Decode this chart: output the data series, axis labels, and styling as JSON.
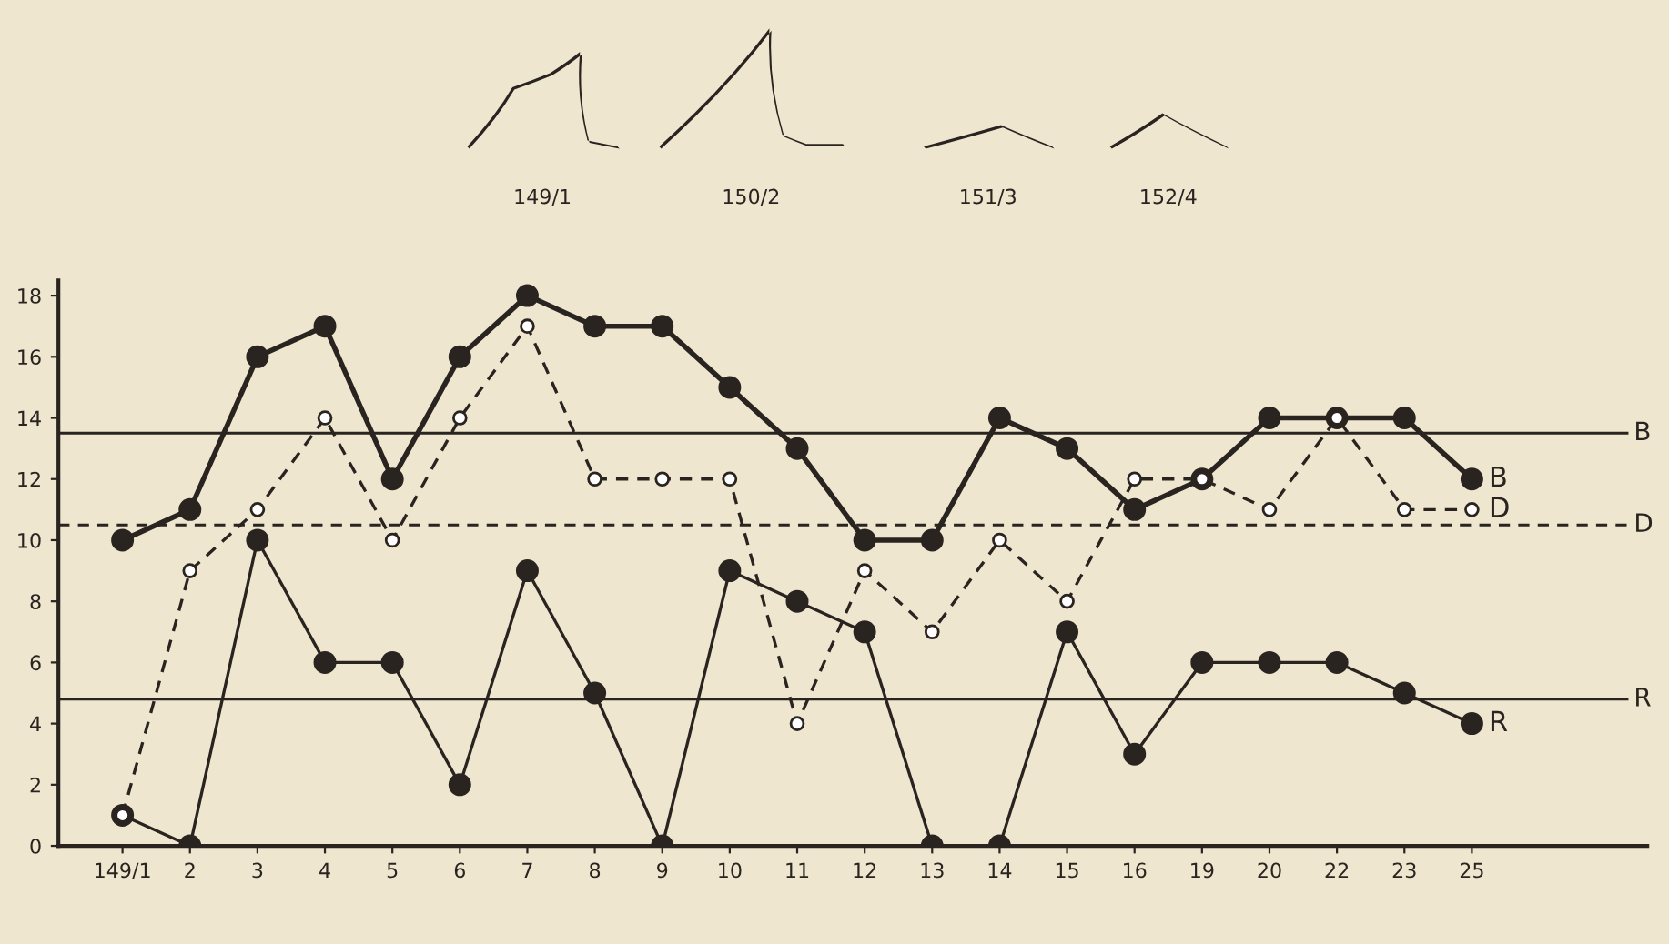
{
  "chart_data": {
    "type": "line",
    "categories": [
      "149/1",
      "2",
      "3",
      "4",
      "5",
      "6",
      "7",
      "8",
      "9",
      "10",
      "11",
      "12",
      "13",
      "14",
      "15",
      "16",
      "19",
      "20",
      "22",
      "23",
      "25"
    ],
    "series": [
      {
        "name": "B",
        "color": "#2a2420",
        "line_style": "solid",
        "values": [
          10,
          11,
          16,
          17,
          12,
          16,
          18,
          17,
          17,
          15,
          13,
          10,
          10,
          14,
          13,
          11,
          12,
          14,
          14,
          14,
          12
        ]
      },
      {
        "name": "D",
        "color": "#2a2420",
        "line_style": "dashed",
        "values": [
          1,
          9,
          11,
          14,
          10,
          14,
          17,
          12,
          12,
          12,
          4,
          9,
          7,
          10,
          8,
          12,
          12,
          11,
          14,
          11,
          11
        ]
      },
      {
        "name": "R",
        "color": "#2a2420",
        "line_style": "solid",
        "values": [
          1,
          0,
          10,
          6,
          6,
          2,
          9,
          5,
          0,
          9,
          8,
          7,
          0,
          0,
          7,
          3,
          6,
          6,
          6,
          5,
          4
        ]
      }
    ],
    "marker": "circle",
    "ylim": [
      0,
      18.5
    ],
    "yticks": [
      0,
      2,
      4,
      6,
      8,
      10,
      12,
      14,
      16,
      18
    ],
    "ref_lines": [
      {
        "axis": "y",
        "value": 13.5,
        "label": "B",
        "line_style": "solid",
        "color": "#2a2420"
      },
      {
        "axis": "y",
        "value": 10.5,
        "label": "D",
        "line_style": "dashed",
        "color": "#2a2420"
      },
      {
        "axis": "y",
        "value": 4.8,
        "label": "R",
        "line_style": "solid",
        "color": "#2a2420"
      }
    ],
    "annotations": [
      "149/1",
      "150/2",
      "151/3",
      "152/4"
    ]
  }
}
